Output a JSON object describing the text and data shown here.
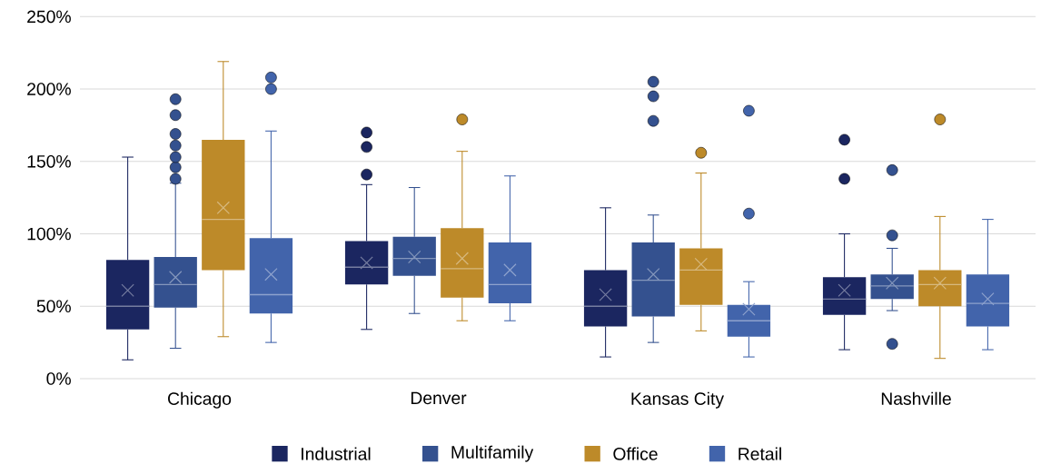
{
  "chart_data": {
    "type": "box",
    "categories": [
      "Chicago",
      "Denver",
      "Kansas City",
      "Nashville"
    ],
    "ylim": [
      0,
      250
    ],
    "yticks": [
      {
        "value": 0,
        "label": "0%"
      },
      {
        "value": 50,
        "label": "50%"
      },
      {
        "value": 100,
        "label": "100%"
      },
      {
        "value": 150,
        "label": "150%"
      },
      {
        "value": 200,
        "label": "200%"
      },
      {
        "value": 250,
        "label": "250%"
      }
    ],
    "grid": "y",
    "legend": "bottom",
    "marker": "circle",
    "series": [
      {
        "name": "Industrial",
        "color": "#1b2660",
        "boxes": [
          {
            "low": 13,
            "q1": 34,
            "median": 50,
            "q3": 82,
            "high": 153,
            "mean": 61
          },
          {
            "low": 34,
            "q1": 65,
            "median": 77,
            "q3": 95,
            "high": 134,
            "mean": 80,
            "outliers": [
              141,
              160,
              170
            ]
          },
          {
            "low": 15,
            "q1": 36,
            "median": 50,
            "q3": 75,
            "high": 118,
            "mean": 58
          },
          {
            "low": 20,
            "q1": 44,
            "median": 55,
            "q3": 70,
            "high": 100,
            "mean": 61,
            "outliers": [
              138,
              165
            ]
          }
        ]
      },
      {
        "name": "Multifamily",
        "color": "#34518f",
        "boxes": [
          {
            "low": 21,
            "q1": 49,
            "median": 65,
            "q3": 84,
            "high": 135,
            "mean": 70,
            "outliers": [
              138,
              146,
              153,
              161,
              169,
              182,
              193
            ]
          },
          {
            "low": 45,
            "q1": 71,
            "median": 83,
            "q3": 98,
            "high": 132,
            "mean": 84
          },
          {
            "low": 25,
            "q1": 43,
            "median": 68,
            "q3": 94,
            "high": 113,
            "mean": 72,
            "outliers": [
              178,
              195,
              205
            ]
          },
          {
            "low": 47,
            "q1": 55,
            "median": 64,
            "q3": 72,
            "high": 90,
            "mean": 66,
            "outliers": [
              24,
              99,
              144
            ]
          }
        ]
      },
      {
        "name": "Office",
        "color": "#bd8a29",
        "boxes": [
          {
            "low": 29,
            "q1": 75,
            "median": 110,
            "q3": 165,
            "high": 219,
            "mean": 118
          },
          {
            "low": 40,
            "q1": 56,
            "median": 76,
            "q3": 104,
            "high": 157,
            "mean": 83,
            "outliers": [
              179
            ]
          },
          {
            "low": 33,
            "q1": 51,
            "median": 75,
            "q3": 90,
            "high": 142,
            "mean": 79,
            "outliers": [
              156
            ]
          },
          {
            "low": 14,
            "q1": 50,
            "median": 65,
            "q3": 75,
            "high": 112,
            "mean": 66,
            "outliers": [
              179
            ]
          }
        ]
      },
      {
        "name": "Retail",
        "color": "#4264ab",
        "boxes": [
          {
            "low": 25,
            "q1": 45,
            "median": 58,
            "q3": 97,
            "high": 171,
            "mean": 72,
            "outliers": [
              200,
              208
            ]
          },
          {
            "low": 40,
            "q1": 52,
            "median": 65,
            "q3": 94,
            "high": 140,
            "mean": 75
          },
          {
            "low": 15,
            "q1": 29,
            "median": 40,
            "q3": 51,
            "high": 67,
            "mean": 48,
            "outliers": [
              114,
              185
            ]
          },
          {
            "low": 20,
            "q1": 36,
            "median": 52,
            "q3": 72,
            "high": 110,
            "mean": 55
          }
        ]
      }
    ]
  }
}
